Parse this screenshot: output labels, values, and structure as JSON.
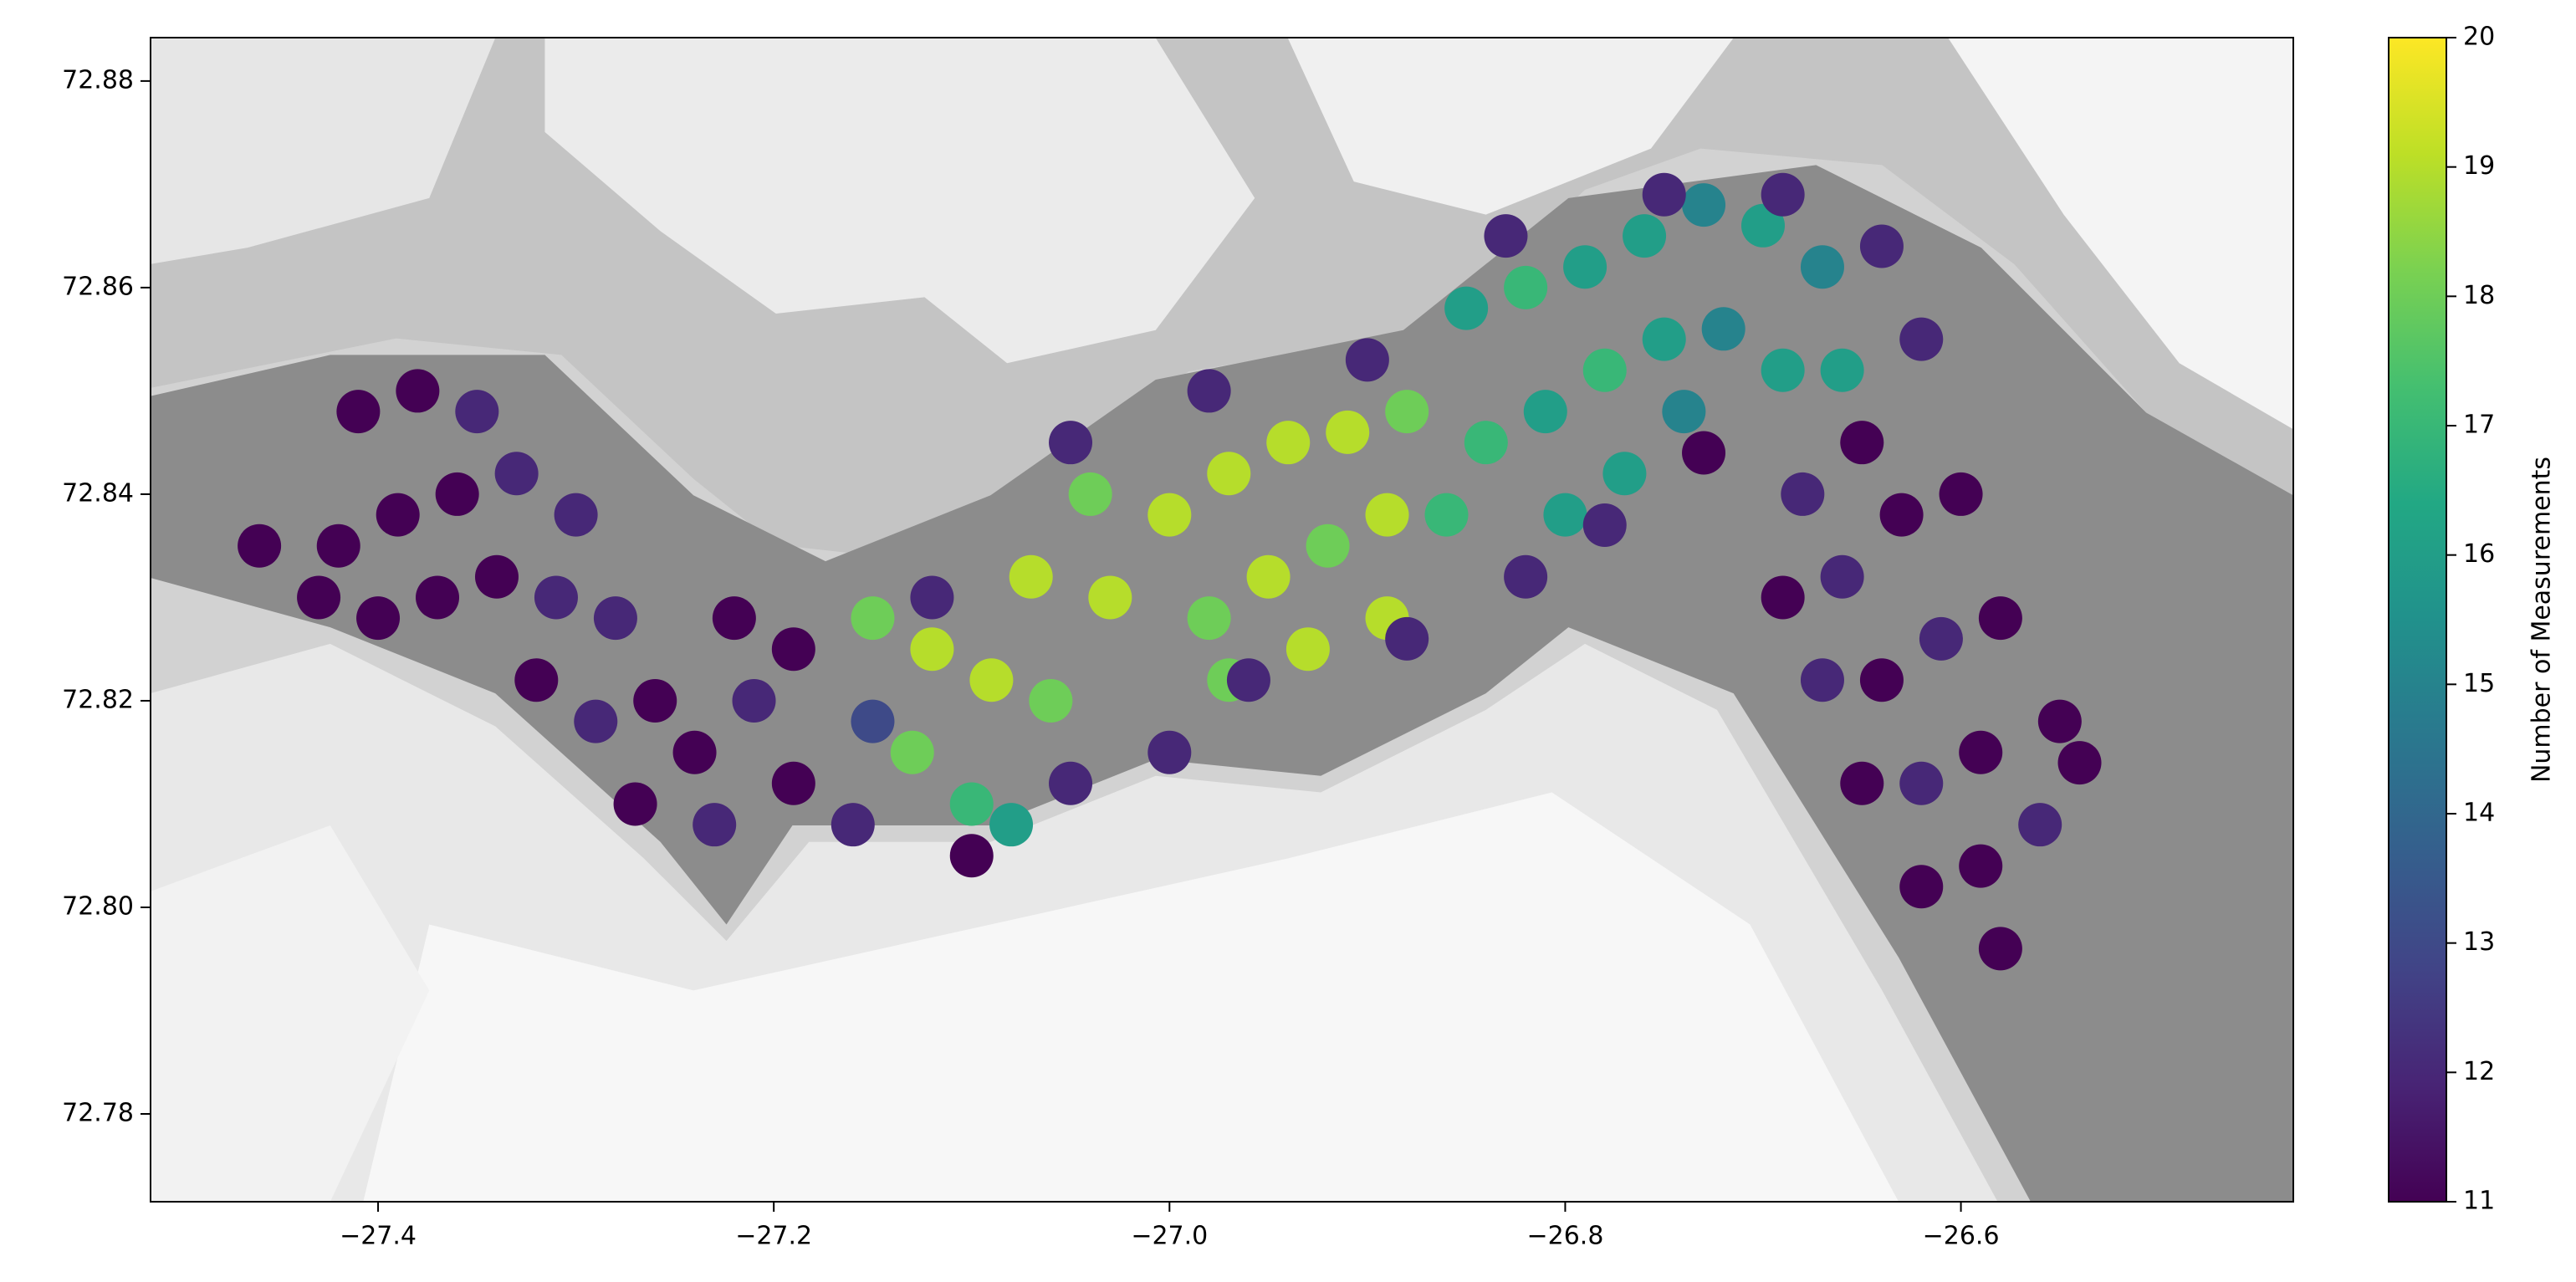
{
  "chart_data": {
    "type": "scatter",
    "colormap": "viridis",
    "xlim": [
      -27.515,
      -26.432
    ],
    "ylim": [
      72.7715,
      72.8842
    ],
    "xticks": [
      {
        "value": -27.4,
        "label": "−27.4"
      },
      {
        "value": -27.2,
        "label": "−27.2"
      },
      {
        "value": -27.0,
        "label": "−27.0"
      },
      {
        "value": -26.8,
        "label": "−26.8"
      },
      {
        "value": -26.6,
        "label": "−26.6"
      }
    ],
    "yticks": [
      72.78,
      {
        "value": 72.8,
        "label": "72.80"
      },
      72.82,
      72.84,
      72.86,
      72.88
    ],
    "colorbar": {
      "label": "Number of Measurements",
      "lim": [
        11,
        20
      ],
      "ticks": [
        11,
        12,
        13,
        14,
        15,
        16,
        17,
        18,
        19,
        20
      ]
    },
    "x": [
      -27.41,
      -27.38,
      -27.35,
      -27.42,
      -27.39,
      -27.36,
      -27.33,
      -27.3,
      -27.43,
      -27.4,
      -27.37,
      -27.34,
      -27.31,
      -27.28,
      -27.32,
      -27.29,
      -27.26,
      -27.24,
      -27.21,
      -27.19,
      -27.27,
      -27.23,
      -27.19,
      -27.16,
      -27.22,
      -27.15,
      -27.46,
      -27.15,
      -27.12,
      -27.13,
      -27.1,
      -27.09,
      -27.07,
      -27.06,
      -27.08,
      -27.04,
      -27.03,
      -27.0,
      -26.97,
      -26.94,
      -26.91,
      -26.98,
      -26.95,
      -26.92,
      -26.89,
      -26.97,
      -26.93,
      -26.89,
      -26.88,
      -26.85,
      -26.82,
      -26.79,
      -26.76,
      -26.73,
      -26.7,
      -26.67,
      -26.84,
      -26.81,
      -26.78,
      -26.75,
      -26.72,
      -26.69,
      -26.66,
      -26.8,
      -26.77,
      -26.74,
      -26.86,
      -27.12,
      -27.05,
      -26.98,
      -26.9,
      -26.83,
      -26.75,
      -26.69,
      -26.64,
      -26.62,
      -27.1,
      -27.05,
      -27.0,
      -26.96,
      -26.88,
      -26.82,
      -26.78,
      -26.73,
      -26.68,
      -26.65,
      -26.69,
      -26.66,
      -26.63,
      -26.6,
      -26.67,
      -26.64,
      -26.61,
      -26.58,
      -26.65,
      -26.62,
      -26.59,
      -26.55,
      -26.62,
      -26.59,
      -26.56,
      -26.54,
      -26.58
    ],
    "y": [
      72.848,
      72.85,
      72.848,
      72.835,
      72.838,
      72.84,
      72.842,
      72.838,
      72.83,
      72.828,
      72.83,
      72.832,
      72.83,
      72.828,
      72.822,
      72.818,
      72.82,
      72.815,
      72.82,
      72.825,
      72.81,
      72.808,
      72.812,
      72.808,
      72.828,
      72.818,
      72.835,
      72.828,
      72.825,
      72.815,
      72.81,
      72.822,
      72.832,
      72.82,
      72.808,
      72.84,
      72.83,
      72.838,
      72.842,
      72.845,
      72.846,
      72.828,
      72.832,
      72.835,
      72.838,
      72.822,
      72.825,
      72.828,
      72.848,
      72.858,
      72.86,
      72.862,
      72.865,
      72.868,
      72.866,
      72.862,
      72.845,
      72.848,
      72.852,
      72.855,
      72.856,
      72.852,
      72.852,
      72.838,
      72.842,
      72.848,
      72.838,
      72.83,
      72.845,
      72.85,
      72.853,
      72.865,
      72.869,
      72.869,
      72.864,
      72.855,
      72.805,
      72.812,
      72.815,
      72.822,
      72.826,
      72.832,
      72.837,
      72.844,
      72.84,
      72.845,
      72.83,
      72.832,
      72.838,
      72.84,
      72.822,
      72.822,
      72.826,
      72.828,
      72.812,
      72.812,
      72.815,
      72.818,
      72.802,
      72.804,
      72.808,
      72.814,
      72.796
    ],
    "values": [
      11,
      11,
      12,
      11,
      11,
      11,
      12,
      12,
      11,
      11,
      11,
      11,
      12,
      12,
      11,
      12,
      11,
      11,
      12,
      11,
      11,
      12,
      11,
      12,
      11,
      13,
      11,
      18,
      19,
      18,
      17,
      19,
      19,
      18,
      16,
      18,
      19,
      19,
      19,
      19,
      19,
      18,
      19,
      18,
      19,
      18,
      19,
      19,
      18,
      16,
      17,
      16,
      16,
      15,
      16,
      15,
      17,
      16,
      17,
      16,
      15,
      16,
      16,
      16,
      16,
      15,
      17,
      12,
      12,
      12,
      12,
      12,
      12,
      12,
      12,
      12,
      11,
      12,
      12,
      12,
      12,
      12,
      12,
      11,
      12,
      11,
      11,
      12,
      11,
      11,
      12,
      11,
      12,
      11,
      11,
      12,
      11,
      11,
      11,
      11,
      12,
      11,
      11
    ]
  }
}
